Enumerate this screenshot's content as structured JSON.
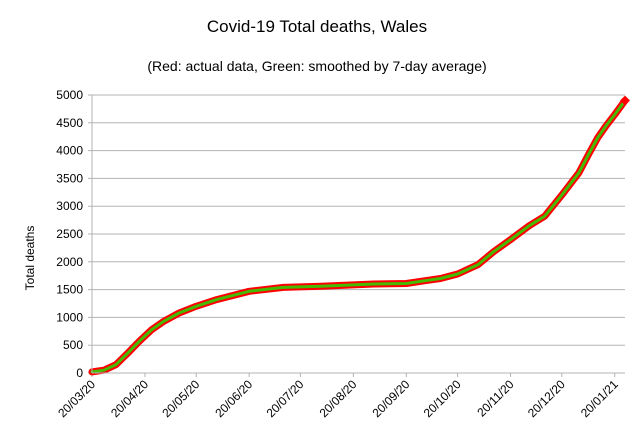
{
  "chart_data": {
    "type": "line",
    "title": "Covid-19 Total deaths, Wales",
    "subtitle": "(Red: actual data, Green: smoothed by 7-day average)",
    "xlabel": "",
    "ylabel": "Total deaths",
    "ylim": [
      0,
      5000
    ],
    "yticks": [
      0,
      500,
      1000,
      1500,
      2000,
      2500,
      3000,
      3500,
      4000,
      4500,
      5000
    ],
    "xlim": [
      "2020-03-20",
      "2021-01-26"
    ],
    "xticks": [
      "20/03/20",
      "20/04/20",
      "20/05/20",
      "20/06/20",
      "20/07/20",
      "20/08/20",
      "20/09/20",
      "20/10/20",
      "20/11/20",
      "20/12/20",
      "20/01/21"
    ],
    "grid": "horizontal",
    "series": [
      {
        "name": "actual data",
        "color": "#ff0000",
        "x": [
          "2020-03-20",
          "2020-03-27",
          "2020-04-03",
          "2020-04-10",
          "2020-04-17",
          "2020-04-24",
          "2020-05-01",
          "2020-05-10",
          "2020-05-20",
          "2020-06-01",
          "2020-06-20",
          "2020-07-10",
          "2020-08-01",
          "2020-09-01",
          "2020-09-20",
          "2020-10-01",
          "2020-10-10",
          "2020-10-20",
          "2020-11-01",
          "2020-11-10",
          "2020-11-20",
          "2020-12-01",
          "2020-12-10",
          "2020-12-20",
          "2020-12-30",
          "2021-01-05",
          "2021-01-10",
          "2021-01-15",
          "2021-01-20",
          "2021-01-26"
        ],
        "y": [
          20,
          50,
          150,
          360,
          580,
          780,
          930,
          1080,
          1200,
          1320,
          1470,
          1540,
          1560,
          1600,
          1610,
          1660,
          1700,
          1780,
          1950,
          2180,
          2400,
          2650,
          2820,
          3200,
          3600,
          3950,
          4230,
          4450,
          4650,
          4900
        ]
      },
      {
        "name": "smoothed by 7-day average",
        "color": "#44bb00",
        "x": [
          "2020-03-20",
          "2020-03-27",
          "2020-04-03",
          "2020-04-10",
          "2020-04-17",
          "2020-04-24",
          "2020-05-01",
          "2020-05-10",
          "2020-05-20",
          "2020-06-01",
          "2020-06-20",
          "2020-07-10",
          "2020-08-01",
          "2020-09-01",
          "2020-09-20",
          "2020-10-01",
          "2020-10-10",
          "2020-10-20",
          "2020-11-01",
          "2020-11-10",
          "2020-11-20",
          "2020-12-01",
          "2020-12-10",
          "2020-12-20",
          "2020-12-30",
          "2021-01-05",
          "2021-01-10",
          "2021-01-15",
          "2021-01-20",
          "2021-01-26"
        ],
        "y": [
          20,
          50,
          150,
          360,
          580,
          780,
          930,
          1080,
          1200,
          1320,
          1470,
          1540,
          1560,
          1600,
          1610,
          1660,
          1700,
          1780,
          1950,
          2180,
          2400,
          2650,
          2820,
          3200,
          3600,
          3950,
          4230,
          4450,
          4650,
          4900
        ]
      }
    ]
  }
}
